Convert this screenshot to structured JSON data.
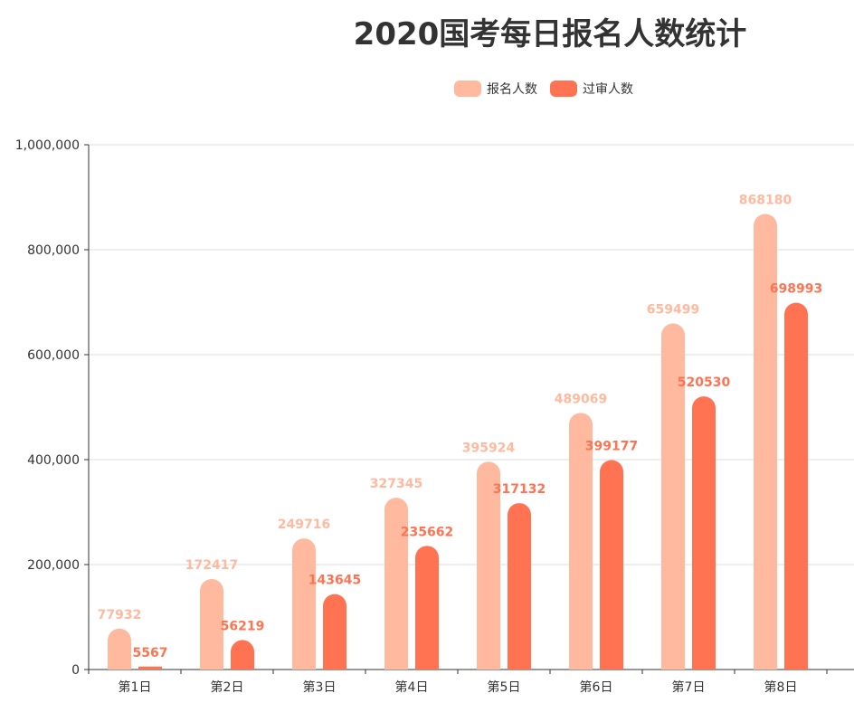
{
  "colors": {
    "applicants": "#ffb99e",
    "approved": "#ff7352",
    "axis": "#333333",
    "grid": "#dddddd"
  },
  "chart_data": {
    "type": "bar",
    "title": "2020国考每日报名人数统计",
    "categories": [
      "第1日",
      "第2日",
      "第3日",
      "第4日",
      "第5日",
      "第6日",
      "第7日",
      "第8日"
    ],
    "series": [
      {
        "name": "报名人数",
        "values": [
          77932,
          172417,
          249716,
          327345,
          395924,
          489069,
          659499,
          868180
        ]
      },
      {
        "name": "过审人数",
        "values": [
          5567,
          56219,
          143645,
          235662,
          317132,
          399177,
          520530,
          698993
        ]
      }
    ],
    "yticks": [
      "0",
      "200,000",
      "400,000",
      "600,000",
      "800,000",
      "1,000,000"
    ],
    "ylim": [
      0,
      1000000
    ],
    "grid": true,
    "legend_position": "top"
  }
}
